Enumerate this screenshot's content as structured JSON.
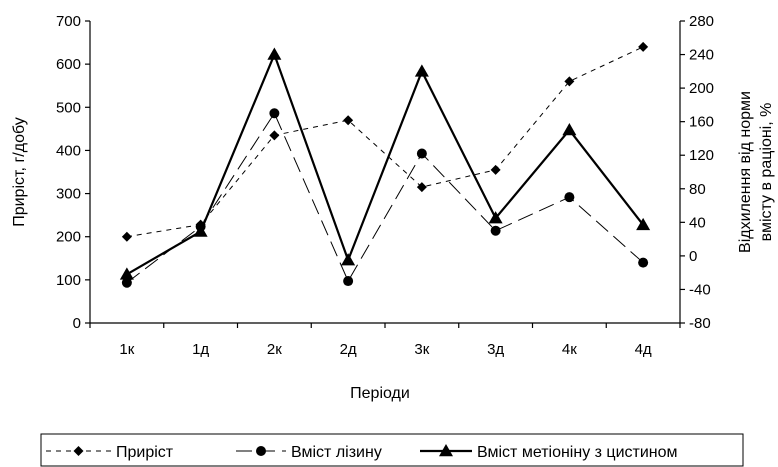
{
  "chart_data": {
    "type": "line",
    "xlabel": "Періоди",
    "ylabel": "Приріст, г/добу",
    "y2label": [
      "Відхилення від норми",
      "вмісту в раціоні, %"
    ],
    "categories": [
      "1к",
      "1д",
      "2к",
      "2д",
      "3к",
      "3д",
      "4к",
      "4д"
    ],
    "ylim": [
      0,
      700
    ],
    "yticks": [
      0,
      100,
      200,
      300,
      400,
      500,
      600,
      700
    ],
    "y2lim": [
      -80,
      280
    ],
    "y2ticks": [
      -80,
      -40,
      0,
      40,
      80,
      120,
      160,
      200,
      240,
      280
    ],
    "grid": false,
    "legend_position": "bottom",
    "series": [
      {
        "name": "Приріст",
        "axis": "left",
        "line": "dashed-short",
        "marker": "diamond",
        "values": [
          200,
          228,
          435,
          470,
          315,
          355,
          560,
          640
        ]
      },
      {
        "name": "Вміст лізину",
        "axis": "right",
        "line": "dashed-long",
        "marker": "circle",
        "values": [
          -32,
          35,
          170,
          -30,
          122,
          30,
          70,
          -8
        ]
      },
      {
        "name": "Вміст метіоніну з цистином",
        "axis": "right",
        "line": "solid",
        "marker": "triangle",
        "values": [
          -22,
          29,
          240,
          -5,
          220,
          45,
          150,
          37
        ]
      }
    ],
    "colors": {
      "axis": "#000000",
      "series": "#000000",
      "background": "#ffffff"
    }
  }
}
